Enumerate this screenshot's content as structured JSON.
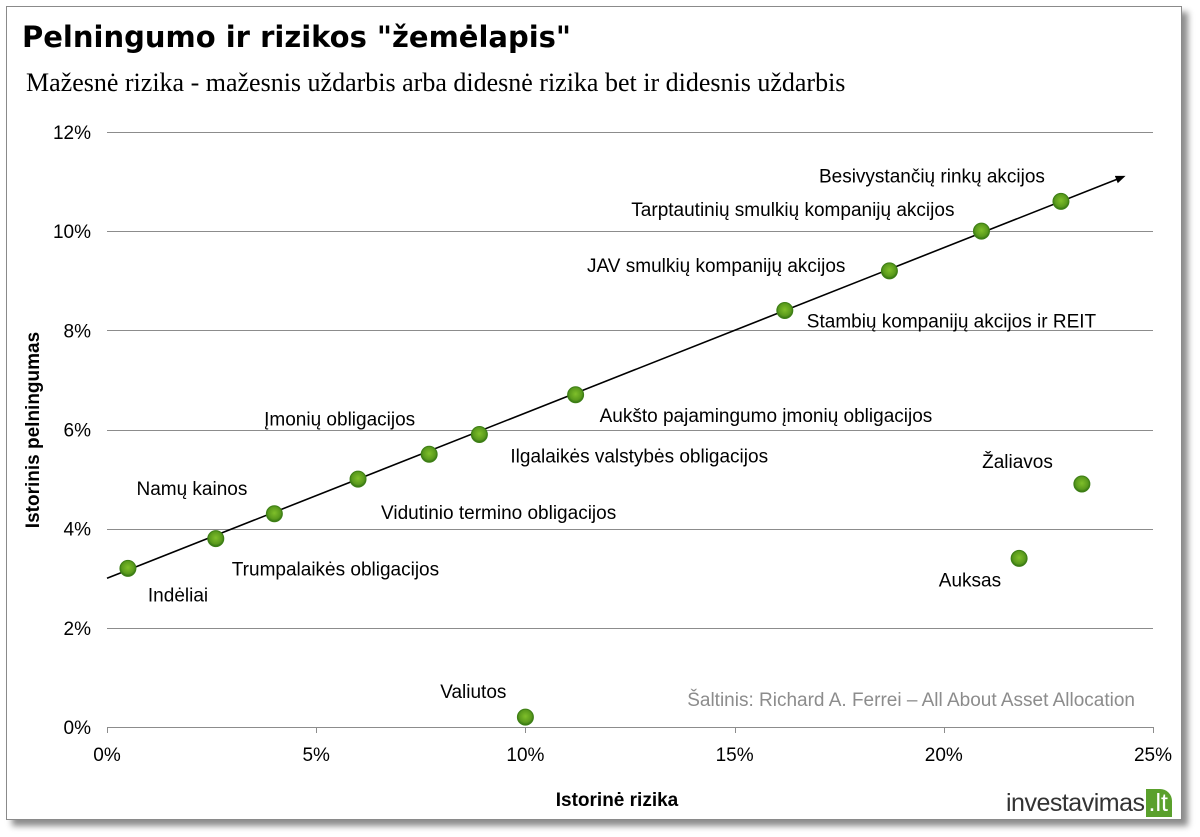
{
  "chart_data": {
    "type": "scatter",
    "title": "Pelningumo ir rizikos \"žemėlapis\"",
    "subtitle": "Mažesnė rizika - mažesnis uždarbis arba didesnė rizika bet ir didesnis uždarbis",
    "xlabel": "Istorinė rizika",
    "ylabel": "Istorinis pelningumas",
    "xlim": [
      0,
      25
    ],
    "ylim": [
      0,
      12
    ],
    "x_ticks": [
      0,
      5,
      10,
      15,
      20,
      25
    ],
    "y_ticks": [
      0,
      2,
      4,
      6,
      8,
      10,
      12
    ],
    "x_tick_labels": [
      "0%",
      "5%",
      "10%",
      "15%",
      "20%",
      "25%"
    ],
    "y_tick_labels": [
      "0%",
      "2%",
      "4%",
      "6%",
      "8%",
      "10%",
      "12%"
    ],
    "grid": "horizontal",
    "marker_color": "#5a9a1c",
    "trend_arrow": {
      "from": [
        0,
        3.0
      ],
      "to": [
        24.3,
        11.1
      ]
    },
    "points": [
      {
        "label": "Indėliai",
        "x": 0.5,
        "y": 3.2
      },
      {
        "label": "Trumpalaikės obligacijos",
        "x": 2.6,
        "y": 3.8
      },
      {
        "label": "Namų kainos",
        "x": 4.0,
        "y": 4.3
      },
      {
        "label": "Vidutinio termino obligacijos",
        "x": 6.0,
        "y": 5.0
      },
      {
        "label": "Įmonių obligacijos",
        "x": 7.7,
        "y": 5.5
      },
      {
        "label": "Ilgalaikės valstybės obligacijos",
        "x": 8.9,
        "y": 5.9
      },
      {
        "label": "Aukšto pajamingumo įmonių obligacijos",
        "x": 11.2,
        "y": 6.7
      },
      {
        "label": "Stambių kompanijų akcijos ir REIT",
        "x": 16.2,
        "y": 8.4
      },
      {
        "label": "JAV smulkių kompanijų akcijos",
        "x": 18.7,
        "y": 9.2
      },
      {
        "label": "Tarptautinių smulkių kompanijų akcijos",
        "x": 20.9,
        "y": 10.0
      },
      {
        "label": "Besivystančių rinkų akcijos",
        "x": 22.8,
        "y": 10.6
      },
      {
        "label": "Valiutos",
        "x": 10.0,
        "y": 0.2
      },
      {
        "label": "Auksas",
        "x": 21.8,
        "y": 3.4
      },
      {
        "label": "Žaliavos",
        "x": 23.3,
        "y": 4.9
      }
    ],
    "source_note": "Šaltinis:  Richard A. Ferrei – All About Asset Allocation"
  },
  "watermark": {
    "text": "investavimas",
    "tld": ".lt"
  }
}
